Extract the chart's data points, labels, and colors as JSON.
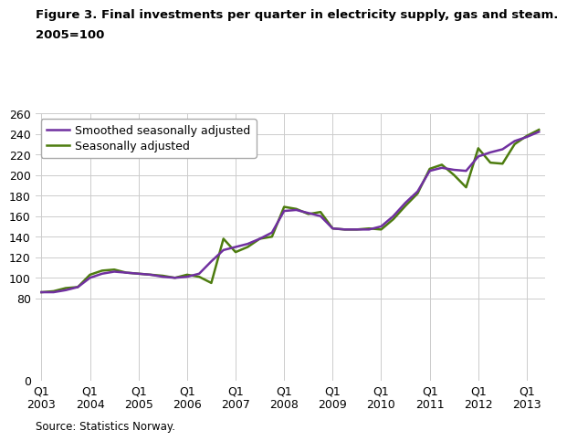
{
  "title_line1": "Figure 3. Final investments per quarter in electricity supply, gas and steam.",
  "title_line2": "2005=100",
  "source": "Source: Statistics Norway.",
  "ylim": [
    0,
    260
  ],
  "yticks": [
    0,
    80,
    100,
    120,
    140,
    160,
    180,
    200,
    220,
    240,
    260
  ],
  "xtick_labels": [
    "Q1\n2003",
    "Q1\n2004",
    "Q1\n2005",
    "Q1\n2006",
    "Q1\n2007",
    "Q1\n2008",
    "Q1\n2009",
    "Q1\n2010",
    "Q1\n2011",
    "Q1\n2012",
    "Q1\n2013"
  ],
  "smoothed_color": "#7030A0",
  "seasonal_color": "#4d7c0f",
  "line_width": 1.8,
  "smoothed_label": "Smoothed seasonally adjusted",
  "seasonal_label": "Seasonally adjusted",
  "background_color": "#ffffff",
  "grid_color": "#cccccc",
  "x_numeric": [
    0,
    1,
    2,
    3,
    4,
    5,
    6,
    7,
    8,
    9,
    10,
    11,
    12,
    13,
    14,
    15,
    16,
    17,
    18,
    19,
    20,
    21,
    22,
    23,
    24,
    25,
    26,
    27,
    28,
    29,
    30,
    31,
    32,
    33,
    34,
    35,
    36,
    37,
    38,
    39,
    40,
    41
  ],
  "seasonal_adjusted": [
    86,
    87,
    90,
    91,
    103,
    107,
    108,
    105,
    104,
    103,
    102,
    100,
    103,
    101,
    95,
    138,
    125,
    130,
    138,
    140,
    169,
    167,
    162,
    164,
    148,
    147,
    147,
    148,
    147,
    157,
    170,
    182,
    206,
    210,
    200,
    188,
    226,
    212,
    211,
    230,
    238,
    244
  ],
  "smoothed_seasonally_adjusted": [
    86,
    86,
    88,
    91,
    100,
    104,
    106,
    105,
    104,
    103,
    101,
    100,
    101,
    104,
    116,
    127,
    130,
    133,
    138,
    144,
    165,
    166,
    163,
    160,
    148,
    147,
    147,
    147,
    150,
    160,
    173,
    184,
    204,
    207,
    205,
    204,
    218,
    222,
    225,
    233,
    237,
    242
  ]
}
